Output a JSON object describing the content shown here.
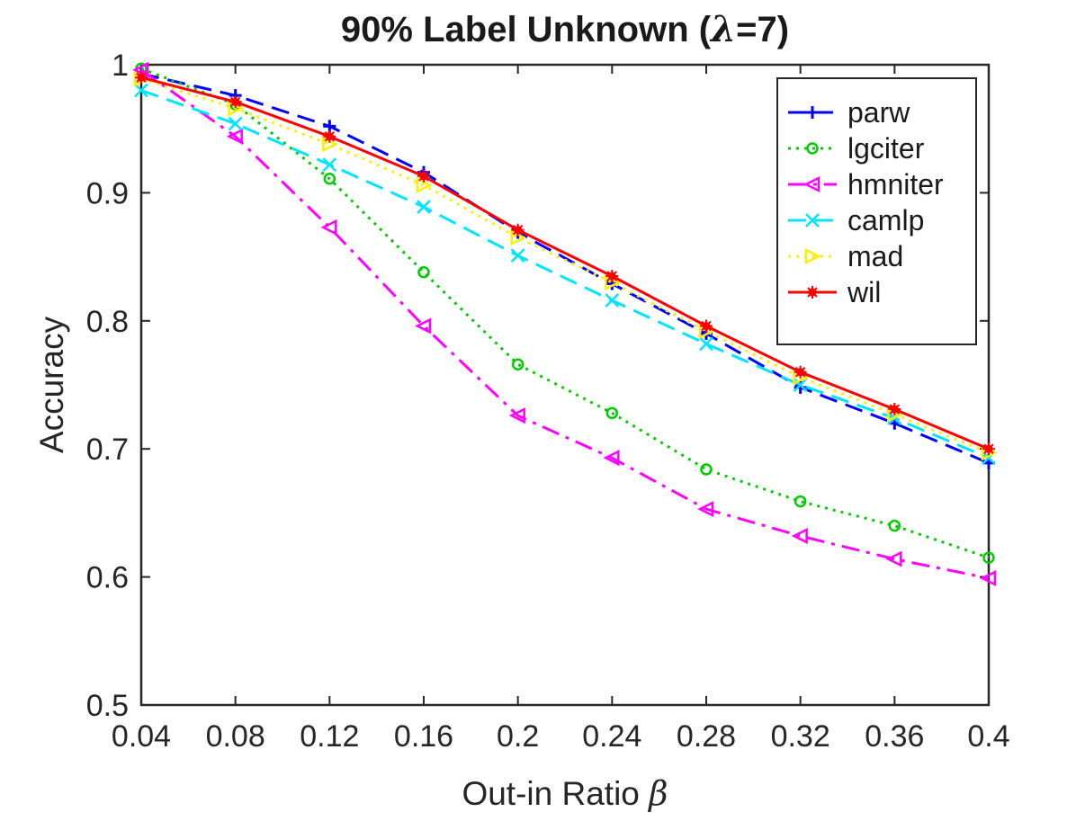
{
  "chart_data": {
    "type": "line",
    "title": "90% Label Unknown (λ=7)",
    "title_prefix": "90% Label Unknown (",
    "title_symbol": "λ",
    "title_suffix": "=7)",
    "xlabel": "Out-in Ratio β",
    "xlabel_text": "Out-in Ratio ",
    "xlabel_symbol": "β",
    "ylabel": "Accuracy",
    "x": [
      0.04,
      0.08,
      0.12,
      0.16,
      0.2,
      0.24,
      0.28,
      0.32,
      0.36,
      0.4
    ],
    "xticks": [
      "0.04",
      "0.08",
      "0.12",
      "0.16",
      "0.2",
      "0.24",
      "0.28",
      "0.32",
      "0.36",
      "0.4"
    ],
    "yticks": [
      "0.5",
      "0.6",
      "0.7",
      "0.8",
      "0.9",
      "1"
    ],
    "xlim": [
      0.04,
      0.4
    ],
    "ylim": [
      0.5,
      1.0
    ],
    "grid": false,
    "legend_position": "top-right",
    "series": [
      {
        "name": "parw",
        "color": "#0000ff",
        "dash": "dashed",
        "marker": "plus",
        "values": [
          0.993,
          0.976,
          0.952,
          0.916,
          0.869,
          0.829,
          0.79,
          0.748,
          0.72,
          0.689
        ]
      },
      {
        "name": "lgciter",
        "color": "#00cc00",
        "dash": "dotted",
        "marker": "circle",
        "values": [
          0.997,
          0.969,
          0.911,
          0.838,
          0.766,
          0.728,
          0.684,
          0.659,
          0.64,
          0.615
        ]
      },
      {
        "name": "hmniter",
        "color": "#ff00ff",
        "dash": "dashdot",
        "marker": "triangle-left",
        "values": [
          0.996,
          0.944,
          0.873,
          0.796,
          0.726,
          0.693,
          0.653,
          0.632,
          0.614,
          0.599
        ]
      },
      {
        "name": "camlp",
        "color": "#00e5ff",
        "dash": "dashed",
        "marker": "x",
        "values": [
          0.98,
          0.954,
          0.922,
          0.889,
          0.851,
          0.816,
          0.782,
          0.75,
          0.724,
          0.693
        ]
      },
      {
        "name": "mad",
        "color": "#ffee00",
        "dash": "dotted",
        "marker": "triangle-right",
        "values": [
          0.989,
          0.966,
          0.938,
          0.906,
          0.865,
          0.83,
          0.792,
          0.756,
          0.727,
          0.697
        ]
      },
      {
        "name": "wil",
        "color": "#ff0000",
        "dash": "solid",
        "marker": "asterisk",
        "values": [
          0.99,
          0.971,
          0.944,
          0.913,
          0.871,
          0.835,
          0.796,
          0.76,
          0.731,
          0.7
        ]
      }
    ]
  }
}
